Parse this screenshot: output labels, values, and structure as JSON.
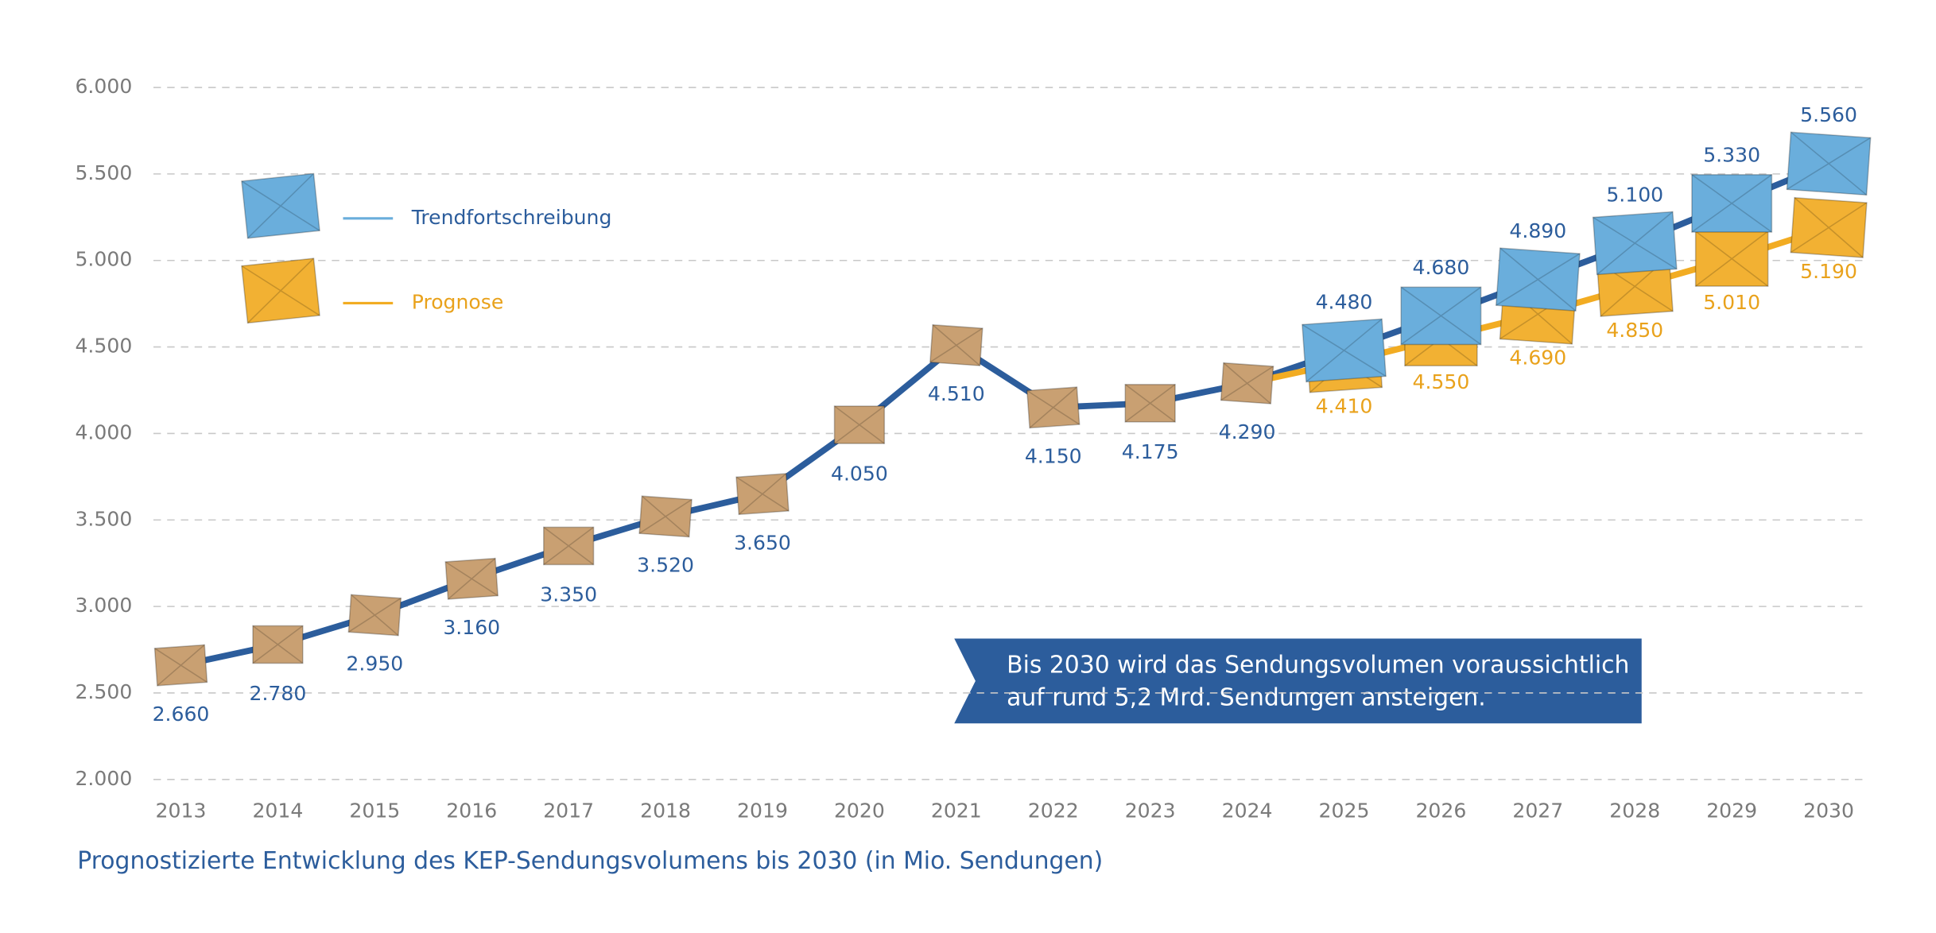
{
  "chart_data": {
    "type": "line",
    "title": "Prognostizierte Entwicklung des KEP-Sendungsvolumens bis 2030 (in Mio. Sendungen)",
    "annotation": [
      "Bis 2030 wird das Sendungsvolumen voraussichtlich",
      "auf rund 5,2 Mrd. Sendungen ansteigen."
    ],
    "categories": [
      "2013",
      "2014",
      "2015",
      "2016",
      "2017",
      "2018",
      "2019",
      "2020",
      "2021",
      "2022",
      "2023",
      "2024",
      "2025",
      "2026",
      "2027",
      "2028",
      "2029",
      "2030"
    ],
    "series": [
      {
        "color": "#2c5d9c",
        "marker_color": "#c9a072",
        "values": [
          2660,
          2780,
          2950,
          3160,
          3350,
          3520,
          3650,
          4050,
          4510,
          4150,
          4175,
          4290,
          null,
          null,
          null,
          null,
          null,
          null
        ],
        "value_labels": [
          "2.660",
          "2.780",
          "2.950",
          "3.160",
          "3.350",
          "3.520",
          "3.650",
          "4.050",
          "4.510",
          "4.150",
          "4.175",
          "4.290",
          null,
          null,
          null,
          null,
          null,
          null
        ]
      },
      {
        "name": "Trendfortschreibung",
        "color": "#2c5d9c",
        "marker_color": "#6aaedc",
        "values": [
          null,
          null,
          null,
          null,
          null,
          null,
          null,
          null,
          null,
          null,
          null,
          4290,
          4480,
          4680,
          4890,
          5100,
          5330,
          5560
        ],
        "value_labels": [
          null,
          null,
          null,
          null,
          null,
          null,
          null,
          null,
          null,
          null,
          null,
          null,
          "4.480",
          "4.680",
          "4.890",
          "5.100",
          "5.330",
          "5.560"
        ]
      },
      {
        "name": "Prognose",
        "color": "#f2ac22",
        "marker_color": "#f2b133",
        "values": [
          null,
          null,
          null,
          null,
          null,
          null,
          null,
          null,
          null,
          null,
          null,
          4290,
          4410,
          4550,
          4690,
          4850,
          5010,
          5190
        ],
        "value_labels": [
          null,
          null,
          null,
          null,
          null,
          null,
          null,
          null,
          null,
          null,
          null,
          null,
          "4.410",
          "4.550",
          "4.690",
          "4.850",
          "5.010",
          "5.190"
        ]
      }
    ],
    "ylim": [
      2000,
      6000
    ],
    "yticks": [
      {
        "value": 2000,
        "label": "2.000"
      },
      {
        "value": 2500,
        "label": "2.500"
      },
      {
        "value": 3000,
        "label": "3.000"
      },
      {
        "value": 3500,
        "label": "3.500"
      },
      {
        "value": 4000,
        "label": "4.000"
      },
      {
        "value": 4500,
        "label": "4.500"
      },
      {
        "value": 5000,
        "label": "5.000"
      },
      {
        "value": 5500,
        "label": "5.500"
      },
      {
        "value": 6000,
        "label": "6.000"
      }
    ],
    "grid": true
  }
}
